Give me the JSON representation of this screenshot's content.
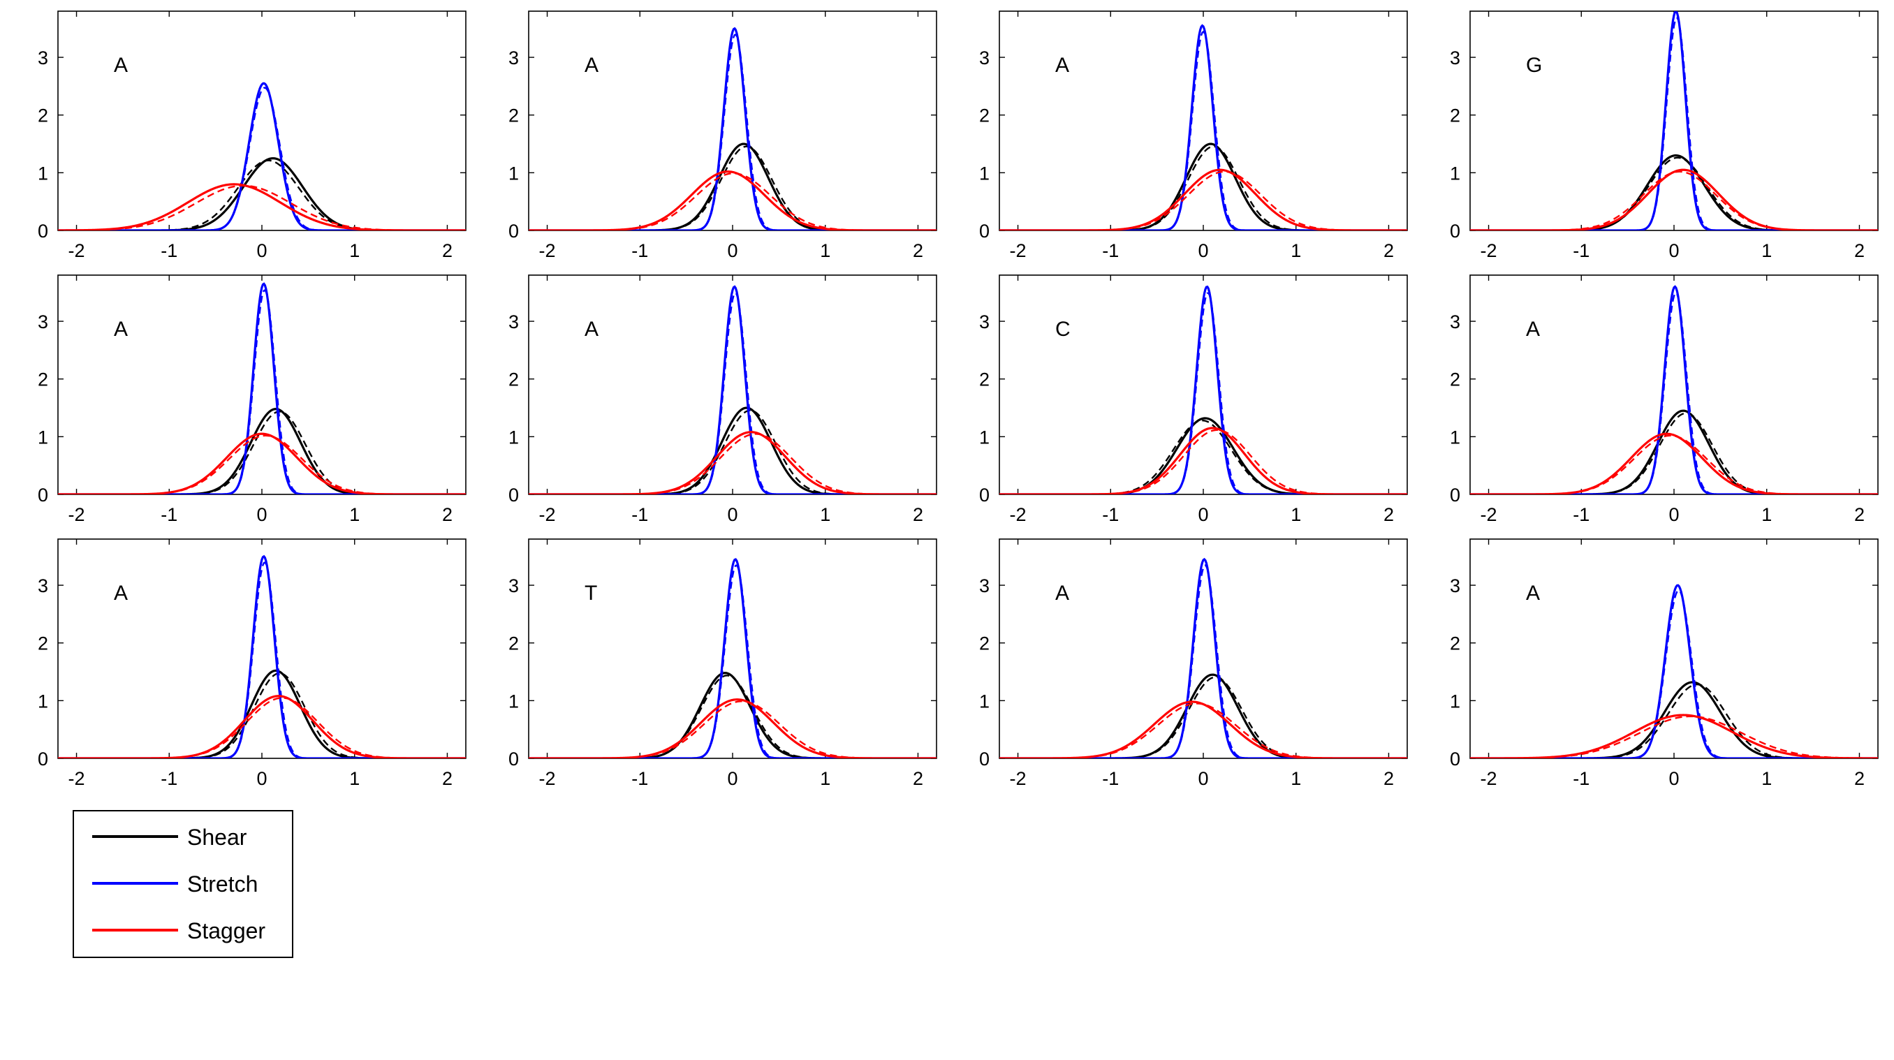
{
  "chart_data": {
    "type": "line",
    "layout": {
      "rows": 3,
      "cols": 4
    },
    "shared_axes": {
      "xlim": [
        -2.2,
        2.2
      ],
      "ylim": [
        0,
        3.8
      ],
      "xticks": [
        -2,
        -1,
        0,
        1,
        2
      ],
      "yticks": [
        0,
        1,
        2,
        3
      ],
      "x_tick_labels": [
        "-2",
        "-1",
        "0",
        "1",
        "2"
      ],
      "y_tick_labels": [
        "0",
        "1",
        "2",
        "3"
      ],
      "grid": false
    },
    "legend": {
      "placement": "below-left",
      "entries": [
        {
          "name": "Shear",
          "color": "#000000"
        },
        {
          "name": "Stretch",
          "color": "#0000ff"
        },
        {
          "name": "Stagger",
          "color": "#ff0000"
        }
      ]
    },
    "panels": [
      {
        "label": "A",
        "series": [
          {
            "name": "Shear",
            "color": "#000000",
            "peak": 1.25,
            "center": 0.12,
            "variants": [
              0,
              -0.05
            ]
          },
          {
            "name": "Stretch",
            "color": "#0000ff",
            "peak": 2.55,
            "center": 0.02,
            "variants": [
              0,
              0.01
            ]
          },
          {
            "name": "Stagger",
            "color": "#ff0000",
            "peak": 0.8,
            "center": -0.3,
            "variants": [
              0,
              0.1
            ]
          }
        ]
      },
      {
        "label": "A",
        "series": [
          {
            "name": "Shear",
            "color": "#000000",
            "peak": 1.5,
            "center": 0.12,
            "variants": [
              0,
              0.03
            ]
          },
          {
            "name": "Stretch",
            "color": "#0000ff",
            "peak": 3.5,
            "center": 0.02,
            "variants": [
              0,
              0.01
            ]
          },
          {
            "name": "Stagger",
            "color": "#ff0000",
            "peak": 1.02,
            "center": -0.05,
            "variants": [
              0,
              0.06
            ]
          }
        ]
      },
      {
        "label": "A",
        "series": [
          {
            "name": "Shear",
            "color": "#000000",
            "peak": 1.5,
            "center": 0.08,
            "variants": [
              0,
              0.03
            ]
          },
          {
            "name": "Stretch",
            "color": "#0000ff",
            "peak": 3.55,
            "center": -0.01,
            "variants": [
              0,
              0.01
            ]
          },
          {
            "name": "Stagger",
            "color": "#ff0000",
            "peak": 1.05,
            "center": 0.18,
            "variants": [
              0,
              0.05
            ]
          }
        ]
      },
      {
        "label": "G",
        "series": [
          {
            "name": "Shear",
            "color": "#000000",
            "peak": 1.3,
            "center": 0.02,
            "variants": [
              0,
              0.02
            ]
          },
          {
            "name": "Stretch",
            "color": "#0000ff",
            "peak": 3.8,
            "center": 0.02,
            "variants": [
              0,
              0.01
            ]
          },
          {
            "name": "Stagger",
            "color": "#ff0000",
            "peak": 1.05,
            "center": 0.1,
            "variants": [
              0,
              -0.04
            ]
          }
        ]
      },
      {
        "label": "A",
        "series": [
          {
            "name": "Shear",
            "color": "#000000",
            "peak": 1.48,
            "center": 0.15,
            "variants": [
              0,
              0.04
            ]
          },
          {
            "name": "Stretch",
            "color": "#0000ff",
            "peak": 3.65,
            "center": 0.02,
            "variants": [
              0,
              0.01
            ]
          },
          {
            "name": "Stagger",
            "color": "#ff0000",
            "peak": 1.05,
            "center": 0.0,
            "variants": [
              0,
              0.04
            ]
          }
        ]
      },
      {
        "label": "A",
        "series": [
          {
            "name": "Shear",
            "color": "#000000",
            "peak": 1.5,
            "center": 0.15,
            "variants": [
              0,
              0.04
            ]
          },
          {
            "name": "Stretch",
            "color": "#0000ff",
            "peak": 3.6,
            "center": 0.02,
            "variants": [
              0,
              0.01
            ]
          },
          {
            "name": "Stagger",
            "color": "#ff0000",
            "peak": 1.08,
            "center": 0.2,
            "variants": [
              0,
              0.05
            ]
          }
        ]
      },
      {
        "label": "C",
        "series": [
          {
            "name": "Shear",
            "color": "#000000",
            "peak": 1.32,
            "center": 0.02,
            "variants": [
              0,
              -0.03
            ]
          },
          {
            "name": "Stretch",
            "color": "#0000ff",
            "peak": 3.6,
            "center": 0.04,
            "variants": [
              0,
              0.01
            ]
          },
          {
            "name": "Stagger",
            "color": "#ff0000",
            "peak": 1.15,
            "center": 0.1,
            "variants": [
              0,
              0.05
            ]
          }
        ]
      },
      {
        "label": "A",
        "series": [
          {
            "name": "Shear",
            "color": "#000000",
            "peak": 1.45,
            "center": 0.1,
            "variants": [
              0,
              0.03
            ]
          },
          {
            "name": "Stretch",
            "color": "#0000ff",
            "peak": 3.6,
            "center": 0.01,
            "variants": [
              0,
              0.01
            ]
          },
          {
            "name": "Stagger",
            "color": "#ff0000",
            "peak": 1.05,
            "center": -0.08,
            "variants": [
              0,
              0.04
            ]
          }
        ]
      },
      {
        "label": "A",
        "series": [
          {
            "name": "Shear",
            "color": "#000000",
            "peak": 1.52,
            "center": 0.15,
            "variants": [
              0,
              0.04
            ]
          },
          {
            "name": "Stretch",
            "color": "#0000ff",
            "peak": 3.5,
            "center": 0.02,
            "variants": [
              0,
              0.01
            ]
          },
          {
            "name": "Stagger",
            "color": "#ff0000",
            "peak": 1.08,
            "center": 0.18,
            "variants": [
              0,
              0.04
            ]
          }
        ]
      },
      {
        "label": "T",
        "series": [
          {
            "name": "Shear",
            "color": "#000000",
            "peak": 1.48,
            "center": -0.08,
            "variants": [
              0,
              0.02
            ]
          },
          {
            "name": "Stretch",
            "color": "#0000ff",
            "peak": 3.45,
            "center": 0.03,
            "variants": [
              0,
              0.01
            ]
          },
          {
            "name": "Stagger",
            "color": "#ff0000",
            "peak": 1.02,
            "center": 0.05,
            "variants": [
              0,
              0.05
            ]
          }
        ]
      },
      {
        "label": "A",
        "series": [
          {
            "name": "Shear",
            "color": "#000000",
            "peak": 1.45,
            "center": 0.1,
            "variants": [
              0,
              0.03
            ]
          },
          {
            "name": "Stretch",
            "color": "#0000ff",
            "peak": 3.45,
            "center": 0.01,
            "variants": [
              0,
              0.01
            ]
          },
          {
            "name": "Stagger",
            "color": "#ff0000",
            "peak": 0.98,
            "center": -0.12,
            "variants": [
              0,
              0.05
            ]
          }
        ]
      },
      {
        "label": "A",
        "series": [
          {
            "name": "Shear",
            "color": "#000000",
            "peak": 1.32,
            "center": 0.2,
            "variants": [
              0,
              0.05
            ]
          },
          {
            "name": "Stretch",
            "color": "#0000ff",
            "peak": 3.0,
            "center": 0.04,
            "variants": [
              0,
              0.01
            ]
          },
          {
            "name": "Stagger",
            "color": "#ff0000",
            "peak": 0.75,
            "center": 0.1,
            "variants": [
              0,
              0.08
            ]
          }
        ]
      }
    ]
  }
}
